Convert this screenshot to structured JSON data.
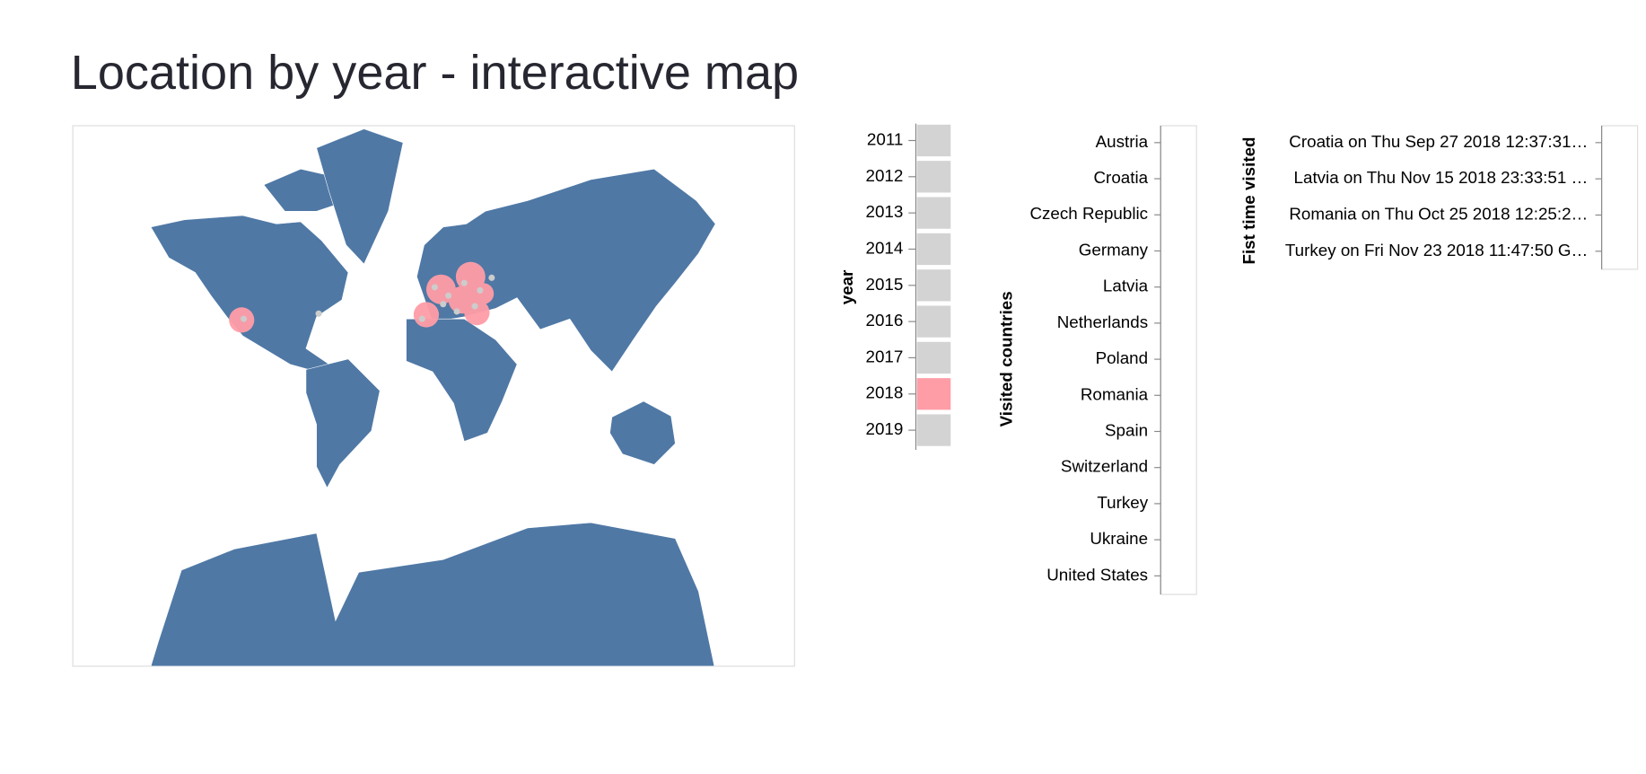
{
  "header": {
    "title": "Location by year - interactive map"
  },
  "year_chart": {
    "axis_title": "year",
    "years": [
      2011,
      2012,
      2013,
      2014,
      2015,
      2016,
      2017,
      2018,
      2019
    ],
    "selected_year": 2018
  },
  "countries_chart": {
    "axis_title": "Visited countries",
    "countries": [
      "Austria",
      "Croatia",
      "Czech Republic",
      "Germany",
      "Latvia",
      "Netherlands",
      "Poland",
      "Romania",
      "Spain",
      "Switzerland",
      "Turkey",
      "Ukraine",
      "United States"
    ]
  },
  "first_visit_chart": {
    "axis_title": "Fist time visited",
    "entries": [
      "Croatia on Thu Sep 27 2018 12:37:31…",
      "Latvia on Thu Nov 15 2018 23:33:51 …",
      "Romania on Thu Oct 25 2018 12:25:2…",
      "Turkey on Fri Nov 23 2018 11:47:50 G…"
    ]
  }
}
